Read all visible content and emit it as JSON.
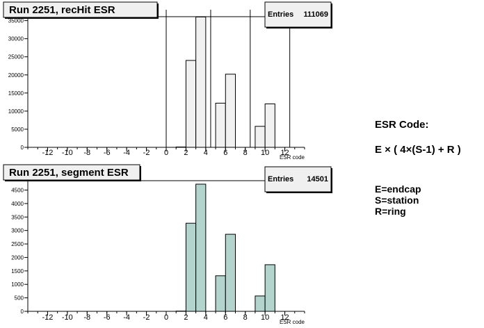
{
  "chart_data": [
    {
      "type": "bar",
      "title": "Run 2251, recHit ESR",
      "stats_label": "Entries",
      "stats_value": "111069",
      "xlabel": "ESR code",
      "ylabel": "",
      "xlim": [
        -14,
        14
      ],
      "ylim": [
        0,
        38000
      ],
      "xticks": [
        "-12",
        "-10",
        "-8",
        "-6",
        "-4",
        "-2",
        "0",
        "2",
        "4",
        "6",
        "8",
        "10",
        "12"
      ],
      "yticks": [
        "0",
        "5000",
        "10000",
        "15000",
        "20000",
        "25000",
        "30000",
        "35000"
      ],
      "fill_color": "#f1f1f1",
      "bin_width": 1,
      "bins": [
        {
          "x": 1,
          "value": 100
        },
        {
          "x": 2,
          "value": 24000
        },
        {
          "x": 3,
          "value": 36000
        },
        {
          "x": 5,
          "value": 12200
        },
        {
          "x": 6,
          "value": 20200
        },
        {
          "x": 9,
          "value": 5800
        },
        {
          "x": 10,
          "value": 12000
        }
      ],
      "vlines": [
        0,
        4.5,
        8.5,
        12.5
      ]
    },
    {
      "type": "bar",
      "title": "Run 2251, segment ESR",
      "stats_label": "Entries",
      "stats_value": "14501",
      "xlabel": "ESR code",
      "ylabel": "",
      "xlim": [
        -14,
        14
      ],
      "ylim": [
        0,
        4900
      ],
      "xticks": [
        "-12",
        "-10",
        "-8",
        "-6",
        "-4",
        "-2",
        "0",
        "2",
        "4",
        "6",
        "8",
        "10",
        "12"
      ],
      "yticks": [
        "0",
        "500",
        "1000",
        "1500",
        "2000",
        "2500",
        "3000",
        "3500",
        "4000",
        "4500"
      ],
      "fill_color": "#b3d4cc",
      "bin_width": 1,
      "bins": [
        {
          "x": 1,
          "value": 10
        },
        {
          "x": 2,
          "value": 3270
        },
        {
          "x": 3,
          "value": 4720
        },
        {
          "x": 5,
          "value": 1320
        },
        {
          "x": 6,
          "value": 2860
        },
        {
          "x": 9,
          "value": 570
        },
        {
          "x": 10,
          "value": 1730
        }
      ],
      "vlines": []
    }
  ],
  "side_panel": {
    "title": "ESR Code:",
    "formula": "E × ( 4×(S-1) + R )",
    "legend": [
      "E=endcap",
      "S=station",
      "R=ring"
    ]
  }
}
